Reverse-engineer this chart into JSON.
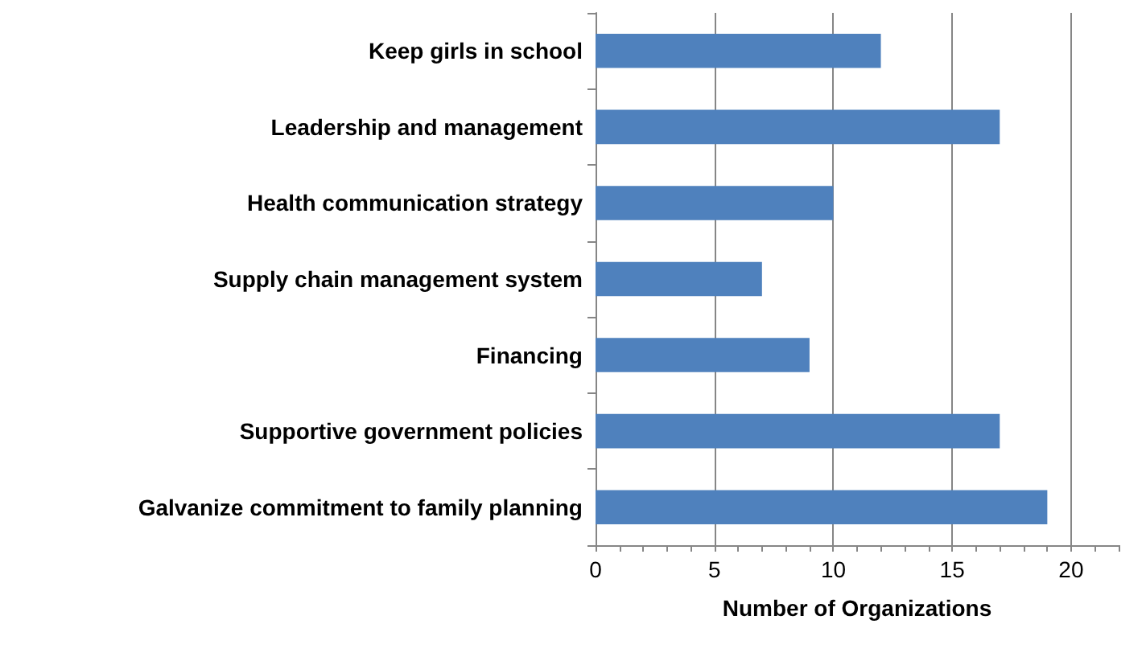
{
  "chart_data": {
    "type": "bar",
    "orientation": "horizontal",
    "xlabel": "Number of Organizations",
    "categories": [
      "Keep girls in school",
      "Leadership and management",
      "Health communication strategy",
      "Supply chain management system",
      "Financing",
      "Supportive government policies",
      "Galvanize commitment to family planning"
    ],
    "values": [
      12,
      17,
      10,
      7,
      9,
      17,
      19
    ],
    "color": "#4f81bd",
    "xlim": [
      0,
      22
    ],
    "xticks": [
      0,
      5,
      10,
      15,
      20
    ],
    "grid": "x"
  }
}
